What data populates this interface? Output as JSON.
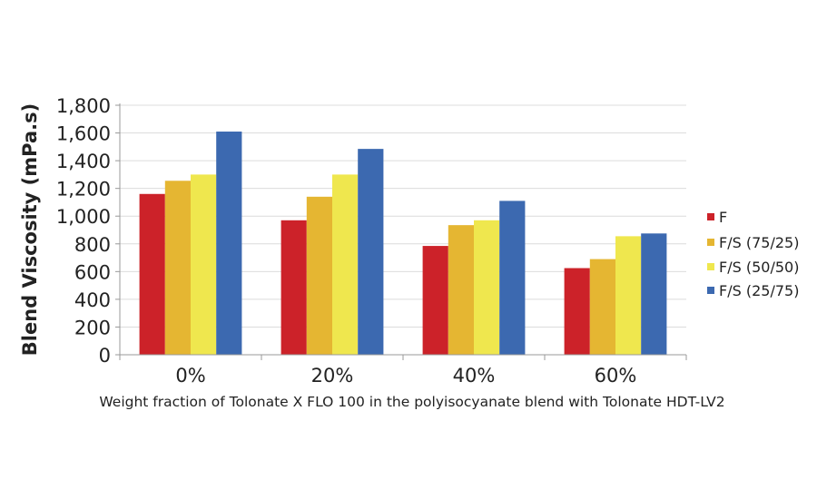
{
  "chart_data": {
    "type": "bar",
    "title": "",
    "xlabel": "Weight fraction of Tolonate X FLO 100 in the polyisocyanate blend with Tolonate HDT-LV2",
    "ylabel": "Blend Viscosity (mPa.s)",
    "ylim": [
      0,
      1800
    ],
    "yticks": [
      "0",
      "200",
      "400",
      "600",
      "800",
      "1,000",
      "1,200",
      "1,400",
      "1,600",
      "1,800"
    ],
    "ytick_values": [
      0,
      200,
      400,
      600,
      800,
      1000,
      1200,
      1400,
      1600,
      1800
    ],
    "grid": true,
    "legend_position": "right",
    "categories": [
      "0%",
      "20%",
      "40%",
      "60%"
    ],
    "series": [
      {
        "name": "F",
        "color": "#cc2229",
        "values": [
          1160,
          970,
          785,
          625
        ]
      },
      {
        "name": "F/S (75/25)",
        "color": "#e5b632",
        "values": [
          1255,
          1140,
          935,
          690
        ]
      },
      {
        "name": "F/S (50/50)",
        "color": "#efe74e",
        "values": [
          1300,
          1300,
          970,
          855
        ]
      },
      {
        "name": "F/S (25/75)",
        "color": "#3c69b0",
        "values": [
          1610,
          1485,
          1110,
          875
        ]
      }
    ]
  }
}
